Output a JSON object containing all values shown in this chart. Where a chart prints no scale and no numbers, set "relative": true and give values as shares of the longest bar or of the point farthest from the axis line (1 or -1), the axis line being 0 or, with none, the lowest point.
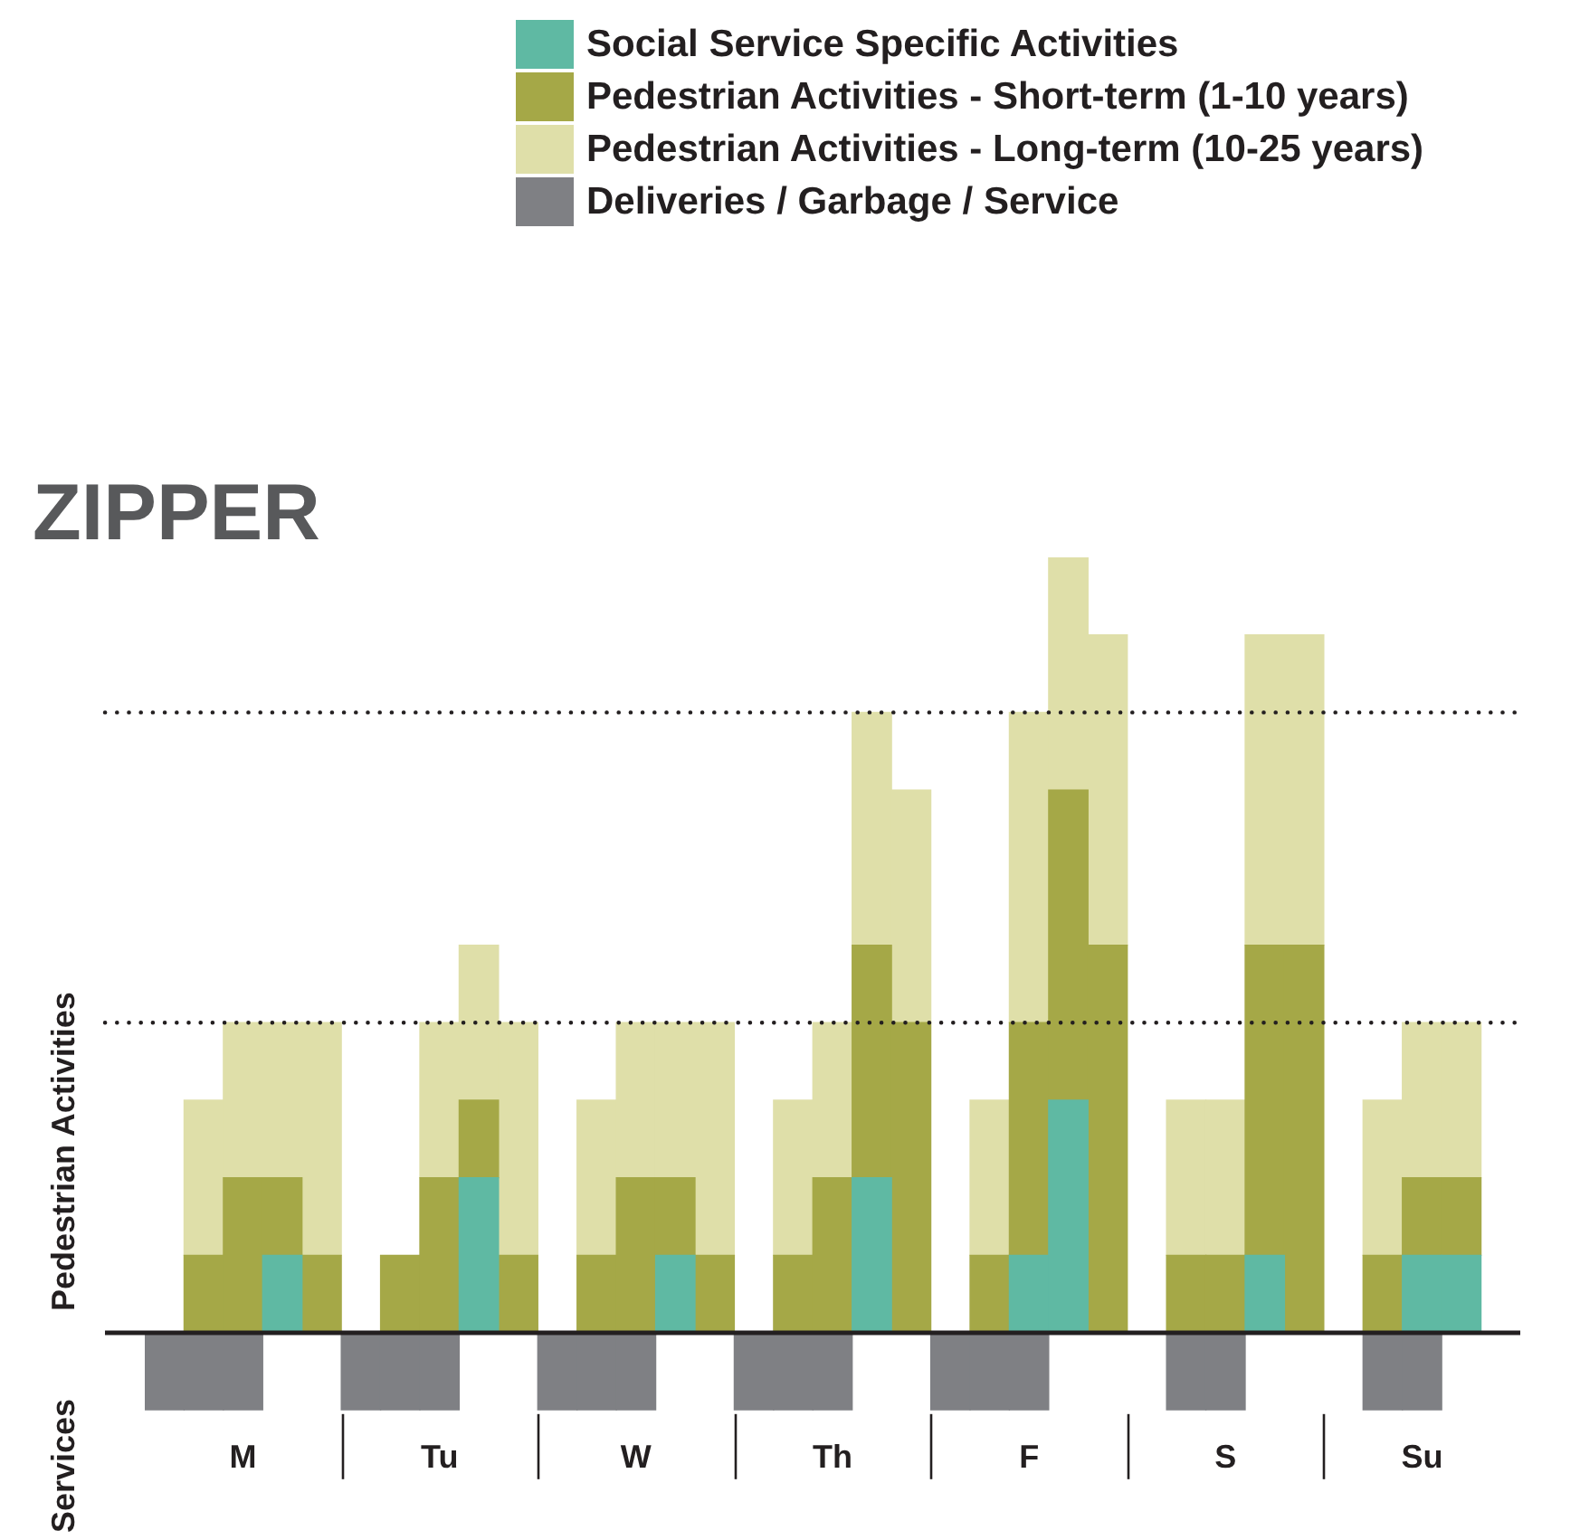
{
  "chart_data": {
    "type": "bar",
    "title": "ZIPPER",
    "ylabel": "Pedestrian Activities",
    "annotations": [
      "Services"
    ],
    "relative": true,
    "stacked": true,
    "legend": "top",
    "categories": [
      null,
      null,
      "M",
      null,
      null,
      null,
      null,
      "Tu",
      null,
      null,
      null,
      null,
      "W",
      null,
      null,
      null,
      null,
      "Th",
      null,
      null,
      null,
      null,
      "F",
      null,
      null,
      null,
      null,
      "S",
      null,
      null,
      null,
      null,
      "Su",
      null,
      null
    ],
    "series": [
      {
        "name": "Social Service Specific Activities",
        "color": "#5fb9a3",
        "values": [
          null,
          null,
          null,
          0.1,
          null,
          null,
          null,
          null,
          0.2,
          null,
          null,
          null,
          null,
          0.1,
          null,
          null,
          null,
          null,
          0.2,
          null,
          null,
          null,
          0.1,
          0.3,
          null,
          null,
          null,
          null,
          0.1,
          null,
          null,
          null,
          0.1,
          0.1,
          null
        ]
      },
      {
        "name": "Pedestrian Activities - Short-term (1-10 years)",
        "color": "#a5a847",
        "values": [
          null,
          0.1,
          0.2,
          0.1,
          0.1,
          null,
          0.1,
          0.2,
          0.1,
          0.1,
          null,
          0.1,
          0.2,
          0.1,
          0.1,
          null,
          0.1,
          0.2,
          0.3,
          0.4,
          null,
          0.1,
          0.3,
          0.4,
          0.5,
          null,
          0.1,
          0.1,
          0.4,
          0.5,
          null,
          0.1,
          0.1,
          0.1,
          null
        ]
      },
      {
        "name": "Pedestrian Activities - Long-term (10-25 years)",
        "color": "#dfdfa9",
        "values": [
          null,
          0.2,
          0.2,
          0.2,
          0.3,
          null,
          null,
          0.2,
          0.2,
          0.3,
          null,
          0.2,
          0.2,
          0.2,
          0.3,
          null,
          0.2,
          0.2,
          0.3,
          0.3,
          null,
          0.2,
          0.4,
          0.3,
          0.4,
          null,
          0.2,
          0.2,
          0.4,
          0.4,
          null,
          0.2,
          0.2,
          0.2,
          null
        ]
      },
      {
        "name": "Deliveries / Garbage / Service",
        "color": "#7f8084",
        "values": [
          -0.1,
          -0.1,
          -0.1,
          null,
          null,
          -0.1,
          -0.1,
          -0.1,
          null,
          null,
          -0.1,
          -0.1,
          -0.1,
          null,
          null,
          -0.1,
          -0.1,
          -0.1,
          null,
          null,
          -0.1,
          -0.1,
          -0.1,
          null,
          null,
          null,
          -0.1,
          -0.1,
          null,
          null,
          null,
          -0.1,
          -0.1,
          null,
          null
        ]
      }
    ],
    "ref_lines": [
      {
        "axis": "y",
        "value": 0.4,
        "line_style": "dotted",
        "color": "#231f20"
      },
      {
        "axis": "y",
        "value": 0.8,
        "line_style": "dotted",
        "color": "#231f20"
      }
    ]
  }
}
